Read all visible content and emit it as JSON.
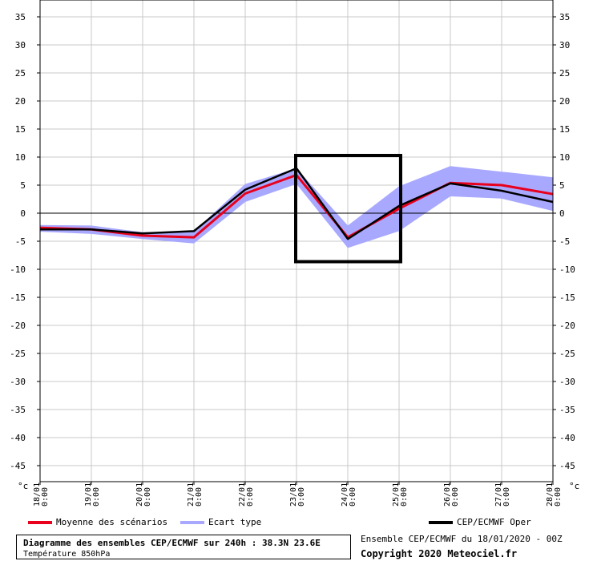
{
  "chart_data": {
    "type": "line",
    "unit": "°c",
    "yticks": [
      35,
      30,
      25,
      20,
      15,
      10,
      5,
      0,
      -5,
      -10,
      -15,
      -20,
      -25,
      -30,
      -35,
      -40,
      -45
    ],
    "ylim": [
      -48.5,
      38
    ],
    "grid": true,
    "x": [
      {
        "date": "18/01",
        "time": "0:00"
      },
      {
        "date": "19/01",
        "time": "0:00"
      },
      {
        "date": "20/01",
        "time": "0:00"
      },
      {
        "date": "21/01",
        "time": "0:00"
      },
      {
        "date": "22/01",
        "time": "0:00"
      },
      {
        "date": "23/01",
        "time": "0:00"
      },
      {
        "date": "24/01",
        "time": "0:00"
      },
      {
        "date": "25/01",
        "time": "0:00"
      },
      {
        "date": "26/01",
        "time": "0:00"
      },
      {
        "date": "27/01",
        "time": "0:00"
      },
      {
        "date": "28/01",
        "time": "0:00"
      }
    ],
    "series": [
      {
        "name": "Moyenne des scénarios",
        "color": "#e8001c",
        "values": [
          -2.6,
          -2.9,
          -4.0,
          -4.3,
          3.5,
          6.8,
          -4.3,
          0.8,
          5.4,
          5.0,
          3.4
        ]
      },
      {
        "name": "CEP/ECMWF Oper",
        "color": "#000000",
        "values": [
          -2.9,
          -2.9,
          -3.6,
          -3.2,
          4.2,
          8.0,
          -4.6,
          1.3,
          5.3,
          4.0,
          2.0
        ]
      }
    ],
    "band": {
      "name": "Ecart type",
      "color": "#a8a8ff",
      "upper": [
        -2.1,
        -2.2,
        -3.4,
        -3.2,
        5.2,
        8.0,
        -2.2,
        4.8,
        8.4,
        7.4,
        6.4
      ],
      "lower": [
        -3.3,
        -3.7,
        -4.6,
        -5.4,
        2.0,
        5.2,
        -6.2,
        -3.2,
        3.0,
        2.6,
        0.4
      ]
    },
    "highlight_box": {
      "x_from": 5,
      "x_to": 7,
      "y_top": 10,
      "y_bottom": -8.5
    }
  },
  "legend": {
    "mean_label": "Moyenne des scénarios",
    "spread_label": "Ecart type",
    "oper_label": "CEP/ECMWF Oper"
  },
  "title": {
    "line1": "Diagramme des ensembles CEP/ECMWF sur 240h : 38.3N 23.6E",
    "line2": "Température 850hPa"
  },
  "info": {
    "run": "Ensemble CEP/ECMWF du 18/01/2020 - 00Z",
    "copyright": "Copyright 2020 Meteociel.fr"
  }
}
